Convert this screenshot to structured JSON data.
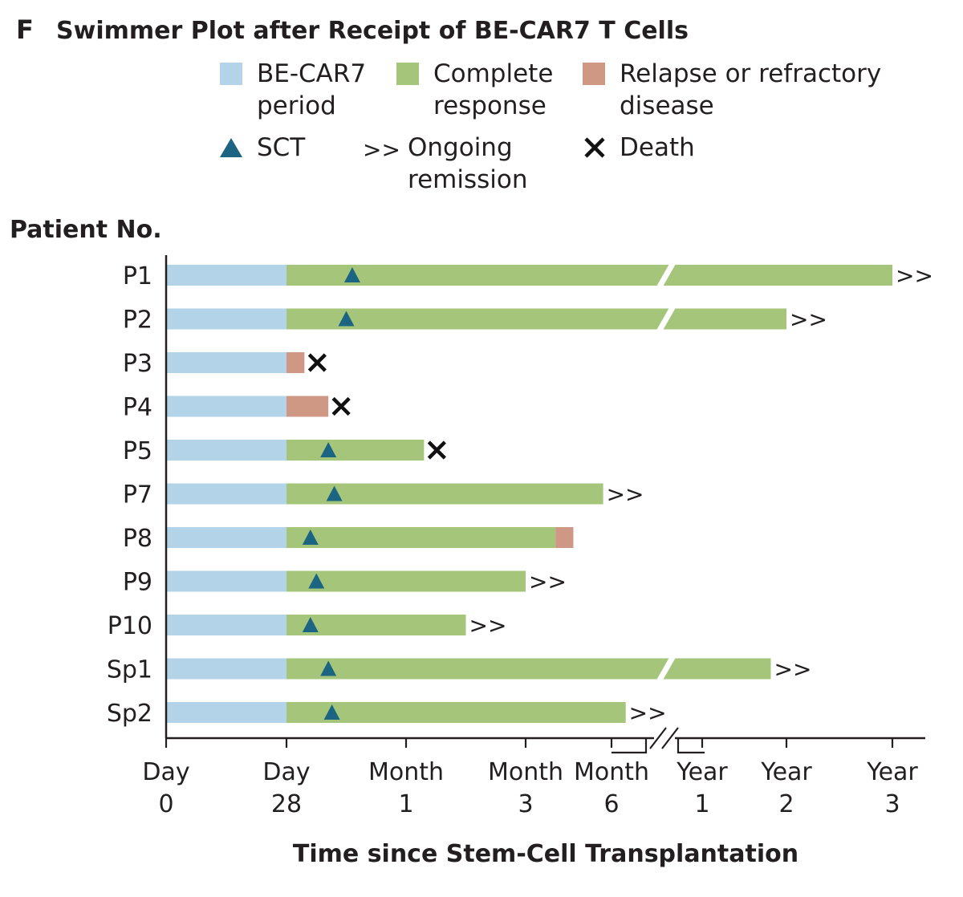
{
  "chart_data": {
    "type": "swimmer",
    "panel_label": "F",
    "title": "Swimmer Plot after Receipt of BE-CAR7 T Cells",
    "ylabel": "Patient No.",
    "xlabel": "Time since Stem-Cell Transplantation",
    "colors": {
      "becar7": "#b3d3e8",
      "cr": "#a5c67a",
      "relapse": "#cf9884",
      "sct": "#1b6482",
      "axis": "#231f20",
      "text": "#231f20"
    },
    "legend": [
      {
        "key": "becar7",
        "lines": [
          "BE-CAR7",
          "period"
        ]
      },
      {
        "key": "cr",
        "lines": [
          "Complete",
          "response"
        ]
      },
      {
        "key": "relapse",
        "lines": [
          "Relapse or refractory",
          "disease"
        ]
      },
      {
        "key": "sct",
        "lines": [
          "SCT"
        ]
      },
      {
        "key": "ongoing",
        "symbol": ">>",
        "lines": [
          "Ongoing",
          "remission"
        ]
      },
      {
        "key": "death",
        "lines": [
          "Death"
        ]
      }
    ],
    "ticks": [
      {
        "pos": 0,
        "lines": [
          "Day",
          "0"
        ]
      },
      {
        "pos": 1,
        "lines": [
          "Day",
          "28"
        ]
      },
      {
        "pos": 2,
        "lines": [
          "Month",
          "1"
        ]
      },
      {
        "pos": 3,
        "lines": [
          "Month",
          "3"
        ]
      },
      {
        "pos": 3.72,
        "lines": [
          "Month",
          "6"
        ]
      },
      {
        "pos": 4.46,
        "lines": [
          "Year",
          "1"
        ]
      },
      {
        "pos": 5.16,
        "lines": [
          "Year",
          "2"
        ]
      },
      {
        "pos": 6.05,
        "lines": [
          "Year",
          "3"
        ]
      }
    ],
    "axis_break_at": 4.22,
    "patients": [
      {
        "id": "P1",
        "becar7_end": 1,
        "segments": [
          {
            "type": "cr",
            "start": 1,
            "end": 6.05
          }
        ],
        "sct": 1.55,
        "outcome": "ongoing",
        "broken": true
      },
      {
        "id": "P2",
        "becar7_end": 1,
        "segments": [
          {
            "type": "cr",
            "start": 1,
            "end": 5.16
          }
        ],
        "sct": 1.5,
        "outcome": "ongoing",
        "broken": true
      },
      {
        "id": "P3",
        "becar7_end": 1,
        "segments": [
          {
            "type": "relapse",
            "start": 1,
            "end": 1.15
          }
        ],
        "sct": null,
        "outcome": "death",
        "broken": false
      },
      {
        "id": "P4",
        "becar7_end": 1,
        "segments": [
          {
            "type": "relapse",
            "start": 1,
            "end": 1.35
          }
        ],
        "sct": null,
        "outcome": "death",
        "broken": false
      },
      {
        "id": "P5",
        "becar7_end": 1,
        "segments": [
          {
            "type": "cr",
            "start": 1,
            "end": 2.15
          }
        ],
        "sct": 1.35,
        "outcome": "death",
        "broken": false
      },
      {
        "id": "P7",
        "becar7_end": 1,
        "segments": [
          {
            "type": "cr",
            "start": 1,
            "end": 3.65
          }
        ],
        "sct": 1.4,
        "outcome": "ongoing",
        "broken": false
      },
      {
        "id": "P8",
        "becar7_end": 1,
        "segments": [
          {
            "type": "cr",
            "start": 1,
            "end": 3.25
          },
          {
            "type": "relapse",
            "start": 3.25,
            "end": 3.4
          }
        ],
        "sct": 1.2,
        "outcome": null,
        "broken": false
      },
      {
        "id": "P9",
        "becar7_end": 1,
        "segments": [
          {
            "type": "cr",
            "start": 1,
            "end": 3
          }
        ],
        "sct": 1.25,
        "outcome": "ongoing",
        "broken": false
      },
      {
        "id": "P10",
        "becar7_end": 1,
        "segments": [
          {
            "type": "cr",
            "start": 1,
            "end": 2.5
          }
        ],
        "sct": 1.2,
        "outcome": "ongoing",
        "broken": false
      },
      {
        "id": "Sp1",
        "becar7_end": 1,
        "segments": [
          {
            "type": "cr",
            "start": 1,
            "end": 5.03
          }
        ],
        "sct": 1.35,
        "outcome": "ongoing",
        "broken": true
      },
      {
        "id": "Sp2",
        "becar7_end": 1,
        "segments": [
          {
            "type": "cr",
            "start": 1,
            "end": 3.85
          }
        ],
        "sct": 1.38,
        "outcome": "ongoing",
        "broken": false
      }
    ]
  }
}
